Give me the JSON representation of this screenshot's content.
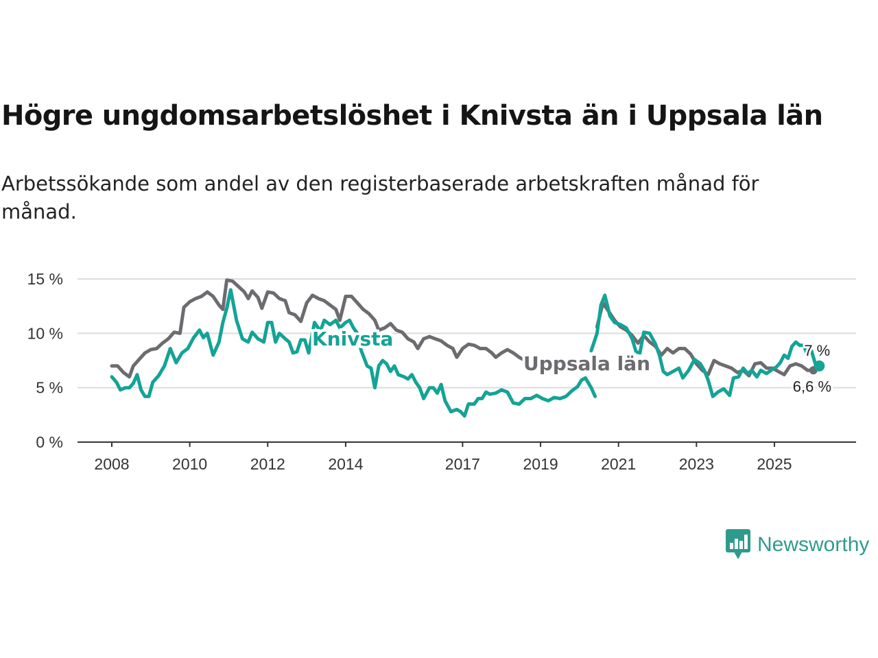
{
  "header": {
    "title": "Högre ungdomsarbetslöshet i Knivsta än i Uppsala län",
    "subtitle": "Arbetssökande som andel av den registerbaserade arbetskraften månad för månad."
  },
  "branding": {
    "name": "Newsworthy"
  },
  "colors": {
    "knivsta": "#14a396",
    "uppsala": "#6c6c70",
    "grid": "#dcdcdc",
    "axis": "#333333",
    "brand": "#2f9a8c"
  },
  "chart_data": {
    "type": "line",
    "title": "Högre ungdomsarbetslöshet i Knivsta än i Uppsala län",
    "xlabel": "",
    "ylabel": "",
    "xlim": [
      2008,
      2026.25
    ],
    "ylim": [
      0,
      15
    ],
    "grid": true,
    "legend": "inline labels",
    "yticks": [
      {
        "value": 0,
        "label": "0 %"
      },
      {
        "value": 5,
        "label": "5 %"
      },
      {
        "value": 10,
        "label": "10 %"
      },
      {
        "value": 15,
        "label": "15 %"
      }
    ],
    "xticks": [
      {
        "value": 2008,
        "label": "2008"
      },
      {
        "value": 2010,
        "label": "2010"
      },
      {
        "value": 2012,
        "label": "2012"
      },
      {
        "value": 2014,
        "label": "2014"
      },
      {
        "value": 2017,
        "label": "2017"
      },
      {
        "value": 2019,
        "label": "2019"
      },
      {
        "value": 2021,
        "label": "2021"
      },
      {
        "value": 2023,
        "label": "2023"
      },
      {
        "value": 2025,
        "label": "2025"
      }
    ],
    "series": [
      {
        "name": "Uppsala län",
        "label": "Uppsala län",
        "color": "#6c6c70",
        "end_label": "6,6 %",
        "points": [
          [
            2008.0,
            7.0
          ],
          [
            2008.15,
            7.0
          ],
          [
            2008.3,
            6.4
          ],
          [
            2008.45,
            6.0
          ],
          [
            2008.55,
            7.0
          ],
          [
            2008.7,
            7.6
          ],
          [
            2008.85,
            8.2
          ],
          [
            2009.0,
            8.5
          ],
          [
            2009.15,
            8.6
          ],
          [
            2009.3,
            9.1
          ],
          [
            2009.45,
            9.5
          ],
          [
            2009.6,
            10.1
          ],
          [
            2009.75,
            10.0
          ],
          [
            2009.85,
            12.4
          ],
          [
            2010.0,
            12.9
          ],
          [
            2010.15,
            13.2
          ],
          [
            2010.3,
            13.4
          ],
          [
            2010.45,
            13.8
          ],
          [
            2010.6,
            13.4
          ],
          [
            2010.75,
            12.6
          ],
          [
            2010.85,
            12.2
          ],
          [
            2010.95,
            14.9
          ],
          [
            2011.1,
            14.8
          ],
          [
            2011.25,
            14.3
          ],
          [
            2011.4,
            13.8
          ],
          [
            2011.5,
            13.2
          ],
          [
            2011.6,
            13.9
          ],
          [
            2011.75,
            13.3
          ],
          [
            2011.85,
            12.3
          ],
          [
            2012.0,
            13.8
          ],
          [
            2012.15,
            13.7
          ],
          [
            2012.3,
            13.2
          ],
          [
            2012.45,
            13.0
          ],
          [
            2012.55,
            11.9
          ],
          [
            2012.7,
            11.7
          ],
          [
            2012.85,
            11.1
          ],
          [
            2013.0,
            12.8
          ],
          [
            2013.15,
            13.5
          ],
          [
            2013.3,
            13.2
          ],
          [
            2013.45,
            13.0
          ],
          [
            2013.6,
            12.6
          ],
          [
            2013.75,
            12.2
          ],
          [
            2013.85,
            11.2
          ],
          [
            2014.0,
            13.4
          ],
          [
            2014.15,
            13.4
          ],
          [
            2014.3,
            12.8
          ],
          [
            2014.45,
            12.2
          ],
          [
            2014.6,
            11.8
          ],
          [
            2014.75,
            11.2
          ],
          [
            2014.85,
            10.3
          ],
          [
            2015.0,
            10.5
          ],
          [
            2015.15,
            10.9
          ],
          [
            2015.3,
            10.3
          ],
          [
            2015.45,
            10.1
          ],
          [
            2015.6,
            9.5
          ],
          [
            2015.75,
            9.2
          ],
          [
            2015.85,
            8.6
          ],
          [
            2016.0,
            9.5
          ],
          [
            2016.15,
            9.7
          ],
          [
            2016.3,
            9.5
          ],
          [
            2016.45,
            9.3
          ],
          [
            2016.6,
            8.9
          ],
          [
            2016.75,
            8.6
          ],
          [
            2016.85,
            7.8
          ],
          [
            2017.0,
            8.6
          ],
          [
            2017.15,
            9.0
          ],
          [
            2017.3,
            8.9
          ],
          [
            2017.45,
            8.6
          ],
          [
            2017.6,
            8.6
          ],
          [
            2017.75,
            8.2
          ],
          [
            2017.85,
            7.8
          ],
          [
            2018.0,
            8.2
          ],
          [
            2018.15,
            8.5
          ],
          [
            2018.3,
            8.2
          ],
          [
            2018.45,
            7.8
          ],
          [
            2018.6,
            7.5
          ],
          [
            2018.75,
            7.4
          ]
        ]
      },
      {
        "name": "Uppsala län (från 2020)",
        "label": "",
        "color": "#6c6c70",
        "end_label": "",
        "points": [
          [
            2020.45,
            10.6
          ],
          [
            2020.6,
            12.8
          ],
          [
            2020.75,
            12.0
          ],
          [
            2020.9,
            11.2
          ],
          [
            2021.05,
            10.6
          ],
          [
            2021.2,
            10.3
          ],
          [
            2021.35,
            9.8
          ],
          [
            2021.5,
            9.1
          ],
          [
            2021.65,
            9.8
          ],
          [
            2021.8,
            9.2
          ],
          [
            2021.95,
            8.8
          ],
          [
            2022.1,
            8.0
          ],
          [
            2022.25,
            8.6
          ],
          [
            2022.4,
            8.2
          ],
          [
            2022.55,
            8.6
          ],
          [
            2022.7,
            8.6
          ],
          [
            2022.85,
            8.1
          ],
          [
            2023.0,
            7.2
          ],
          [
            2023.15,
            6.6
          ],
          [
            2023.3,
            6.2
          ],
          [
            2023.45,
            7.5
          ],
          [
            2023.6,
            7.2
          ],
          [
            2023.75,
            7.0
          ],
          [
            2023.9,
            6.8
          ],
          [
            2024.05,
            6.4
          ],
          [
            2024.2,
            6.6
          ],
          [
            2024.35,
            6.1
          ],
          [
            2024.5,
            7.2
          ],
          [
            2024.65,
            7.3
          ],
          [
            2024.8,
            6.8
          ],
          [
            2024.95,
            6.8
          ],
          [
            2025.1,
            6.5
          ],
          [
            2025.25,
            6.2
          ],
          [
            2025.4,
            7.0
          ],
          [
            2025.55,
            7.2
          ],
          [
            2025.7,
            7.0
          ],
          [
            2025.85,
            6.6
          ],
          [
            2026.0,
            6.6
          ]
        ]
      },
      {
        "name": "Knivsta",
        "label": "Knivsta",
        "color": "#14a396",
        "end_label": "7 %",
        "points": [
          [
            2008.0,
            6.0
          ],
          [
            2008.12,
            5.5
          ],
          [
            2008.22,
            4.8
          ],
          [
            2008.35,
            5.0
          ],
          [
            2008.45,
            5.0
          ],
          [
            2008.55,
            5.4
          ],
          [
            2008.65,
            6.2
          ],
          [
            2008.75,
            4.8
          ],
          [
            2008.85,
            4.2
          ],
          [
            2008.95,
            4.2
          ],
          [
            2009.05,
            5.5
          ],
          [
            2009.2,
            6.1
          ],
          [
            2009.35,
            7.0
          ],
          [
            2009.5,
            8.6
          ],
          [
            2009.65,
            7.3
          ],
          [
            2009.8,
            8.2
          ],
          [
            2009.95,
            8.6
          ],
          [
            2010.1,
            9.6
          ],
          [
            2010.25,
            10.3
          ],
          [
            2010.35,
            9.6
          ],
          [
            2010.45,
            10.0
          ],
          [
            2010.6,
            8.0
          ],
          [
            2010.75,
            9.2
          ],
          [
            2010.85,
            11.0
          ],
          [
            2010.95,
            12.3
          ],
          [
            2011.05,
            14.0
          ],
          [
            2011.2,
            11.2
          ],
          [
            2011.35,
            9.5
          ],
          [
            2011.5,
            9.2
          ],
          [
            2011.6,
            10.1
          ],
          [
            2011.75,
            9.5
          ],
          [
            2011.9,
            9.2
          ],
          [
            2012.0,
            11.0
          ],
          [
            2012.1,
            11.0
          ],
          [
            2012.2,
            9.2
          ],
          [
            2012.3,
            10.0
          ],
          [
            2012.45,
            9.5
          ],
          [
            2012.55,
            9.2
          ],
          [
            2012.65,
            8.2
          ],
          [
            2012.75,
            8.3
          ],
          [
            2012.85,
            9.4
          ],
          [
            2012.95,
            9.4
          ],
          [
            2013.05,
            8.2
          ],
          [
            2013.2,
            11.0
          ],
          [
            2013.35,
            10.2
          ],
          [
            2013.45,
            11.2
          ],
          [
            2013.6,
            10.8
          ],
          [
            2013.75,
            11.2
          ],
          [
            2013.85,
            10.5
          ],
          [
            2014.0,
            11.0
          ],
          [
            2014.1,
            11.2
          ],
          [
            2014.2,
            10.5
          ],
          [
            2014.3,
            10.0
          ],
          [
            2014.4,
            8.4
          ],
          [
            2014.55,
            7.0
          ],
          [
            2014.65,
            6.8
          ],
          [
            2014.75,
            5.0
          ],
          [
            2014.85,
            7.0
          ],
          [
            2014.95,
            7.5
          ],
          [
            2015.05,
            7.2
          ],
          [
            2015.15,
            6.5
          ],
          [
            2015.25,
            7.0
          ],
          [
            2015.35,
            6.2
          ],
          [
            2015.5,
            6.0
          ],
          [
            2015.6,
            5.8
          ],
          [
            2015.7,
            6.2
          ],
          [
            2015.8,
            5.5
          ],
          [
            2015.9,
            5.0
          ],
          [
            2016.0,
            4.0
          ],
          [
            2016.15,
            5.0
          ],
          [
            2016.25,
            5.0
          ],
          [
            2016.35,
            4.5
          ],
          [
            2016.45,
            5.3
          ],
          [
            2016.55,
            3.8
          ],
          [
            2016.7,
            2.8
          ],
          [
            2016.85,
            3.0
          ],
          [
            2016.95,
            2.8
          ],
          [
            2017.05,
            2.4
          ],
          [
            2017.15,
            3.5
          ],
          [
            2017.3,
            3.5
          ],
          [
            2017.4,
            4.0
          ],
          [
            2017.5,
            4.0
          ],
          [
            2017.6,
            4.6
          ],
          [
            2017.7,
            4.4
          ],
          [
            2017.85,
            4.5
          ],
          [
            2018.0,
            4.8
          ],
          [
            2018.15,
            4.6
          ],
          [
            2018.3,
            3.6
          ],
          [
            2018.45,
            3.5
          ],
          [
            2018.6,
            4.0
          ],
          [
            2018.75,
            4.0
          ],
          [
            2018.9,
            4.3
          ],
          [
            2019.05,
            4.0
          ],
          [
            2019.2,
            3.8
          ],
          [
            2019.35,
            4.1
          ],
          [
            2019.5,
            4.0
          ],
          [
            2019.65,
            4.2
          ],
          [
            2019.8,
            4.7
          ],
          [
            2019.95,
            5.1
          ],
          [
            2020.05,
            5.7
          ],
          [
            2020.15,
            5.9
          ],
          [
            2020.3,
            5.0
          ],
          [
            2020.4,
            4.2
          ]
        ]
      },
      {
        "name": "Knivsta (från 2020)",
        "label": "",
        "color": "#14a396",
        "end_label": "",
        "points": [
          [
            2020.3,
            8.4
          ],
          [
            2020.45,
            10.0
          ],
          [
            2020.55,
            12.6
          ],
          [
            2020.65,
            13.5
          ],
          [
            2020.78,
            11.6
          ],
          [
            2020.9,
            11.0
          ],
          [
            2021.05,
            10.8
          ],
          [
            2021.2,
            10.5
          ],
          [
            2021.35,
            9.5
          ],
          [
            2021.45,
            8.3
          ],
          [
            2021.55,
            8.2
          ],
          [
            2021.65,
            10.1
          ],
          [
            2021.8,
            10.0
          ],
          [
            2021.95,
            9.0
          ],
          [
            2022.05,
            8.0
          ],
          [
            2022.15,
            6.5
          ],
          [
            2022.25,
            6.2
          ],
          [
            2022.4,
            6.5
          ],
          [
            2022.55,
            6.8
          ],
          [
            2022.65,
            5.9
          ],
          [
            2022.8,
            6.6
          ],
          [
            2022.95,
            7.6
          ],
          [
            2023.1,
            7.2
          ],
          [
            2023.2,
            6.6
          ],
          [
            2023.3,
            5.7
          ],
          [
            2023.42,
            4.2
          ],
          [
            2023.55,
            4.6
          ],
          [
            2023.7,
            4.9
          ],
          [
            2023.85,
            4.3
          ],
          [
            2023.95,
            5.9
          ],
          [
            2024.08,
            6.0
          ],
          [
            2024.2,
            6.8
          ],
          [
            2024.32,
            6.3
          ],
          [
            2024.42,
            6.6
          ],
          [
            2024.55,
            6.0
          ],
          [
            2024.65,
            6.6
          ],
          [
            2024.8,
            6.3
          ],
          [
            2024.95,
            6.7
          ],
          [
            2025.05,
            6.9
          ],
          [
            2025.15,
            7.3
          ],
          [
            2025.25,
            8.0
          ],
          [
            2025.35,
            7.7
          ],
          [
            2025.45,
            8.8
          ],
          [
            2025.55,
            9.2
          ],
          [
            2025.65,
            8.9
          ],
          [
            2025.75,
            8.9
          ],
          [
            2025.85,
            8.0
          ],
          [
            2025.95,
            8.4
          ],
          [
            2026.0,
            7.8
          ],
          [
            2026.05,
            7.2
          ],
          [
            2026.1,
            6.8
          ],
          [
            2026.15,
            7.0
          ]
        ]
      }
    ]
  }
}
